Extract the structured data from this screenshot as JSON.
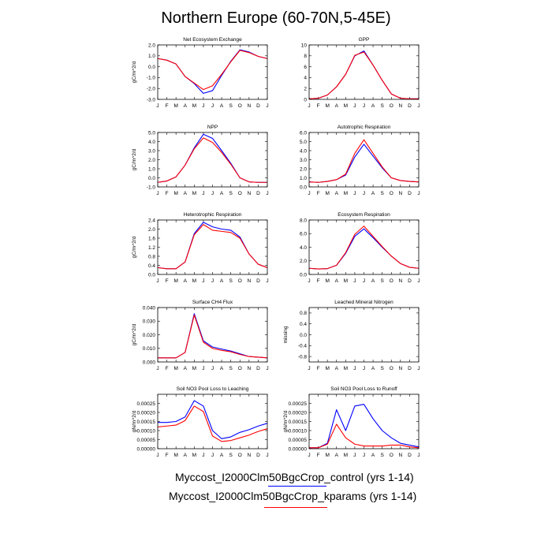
{
  "title": "Northern Europe (60-70N,5-45E)",
  "months": [
    "J",
    "F",
    "M",
    "A",
    "M",
    "J",
    "J",
    "A",
    "S",
    "O",
    "N",
    "D",
    "J"
  ],
  "colors": {
    "control": "#0000ff",
    "kparams": "#ff0000"
  },
  "legend": [
    {
      "label": "Myccost_I2000Clm50BgcCrop_control (yrs 1-14)",
      "color": "#0000ff"
    },
    {
      "label": "Myccost_I2000Clm50BgcCrop_kparams (yrs 1-14)",
      "color": "#ff0000"
    }
  ],
  "chart_data": [
    {
      "type": "line",
      "title": "Net Ecosystem Exchange",
      "ylabel": "gC/m^2/d",
      "ylim": [
        -3.0,
        2.0
      ],
      "yticks": [
        "2.0",
        "1.0",
        "0.0",
        "-1.0",
        "-2.0",
        "-3.0"
      ],
      "ytick_values": [
        2.0,
        1.0,
        0.0,
        -1.0,
        -2.0,
        -3.0
      ],
      "series": [
        {
          "values": [
            0.75,
            0.6,
            0.25,
            -0.9,
            -1.55,
            -2.45,
            -2.2,
            -0.8,
            0.5,
            1.55,
            1.35,
            0.95,
            0.75
          ]
        },
        {
          "values": [
            0.75,
            0.6,
            0.25,
            -0.9,
            -1.5,
            -2.1,
            -1.75,
            -0.7,
            0.45,
            1.5,
            1.3,
            0.95,
            0.75
          ]
        }
      ]
    },
    {
      "type": "line",
      "title": "GPP",
      "ylabel": "",
      "ylim": [
        0,
        10
      ],
      "yticks": [
        "10",
        "8",
        "6",
        "4",
        "2",
        "0"
      ],
      "ytick_values": [
        10,
        8,
        6,
        4,
        2,
        0
      ],
      "series": [
        {
          "values": [
            0.1,
            0.2,
            0.8,
            2.3,
            4.6,
            8.0,
            8.9,
            6.3,
            3.5,
            1.0,
            0.2,
            0.1,
            0.1
          ]
        },
        {
          "values": [
            0.1,
            0.2,
            0.8,
            2.3,
            4.6,
            8.1,
            8.7,
            6.3,
            3.5,
            1.0,
            0.2,
            0.1,
            0.1
          ]
        }
      ]
    },
    {
      "type": "line",
      "title": "NPP",
      "ylabel": "gC/m^2/d",
      "ylim": [
        -1.0,
        5.0
      ],
      "yticks": [
        "5.0",
        "4.0",
        "3.0",
        "2.0",
        "1.0",
        "0.0",
        "-1.0"
      ],
      "ytick_values": [
        5.0,
        4.0,
        3.0,
        2.0,
        1.0,
        0.0,
        -1.0
      ],
      "series": [
        {
          "values": [
            -0.5,
            -0.35,
            0.1,
            1.4,
            3.3,
            4.8,
            4.35,
            3.0,
            1.6,
            0.0,
            -0.45,
            -0.5,
            -0.5
          ]
        },
        {
          "values": [
            -0.5,
            -0.35,
            0.1,
            1.4,
            3.2,
            4.4,
            3.9,
            2.8,
            1.5,
            0.0,
            -0.45,
            -0.5,
            -0.5
          ]
        }
      ]
    },
    {
      "type": "line",
      "title": "Autotrophic Respiration",
      "ylabel": "",
      "ylim": [
        0,
        6.0
      ],
      "yticks": [
        "6.0",
        "5.0",
        "4.0",
        "3.0",
        "2.0",
        "1.0",
        "0.0"
      ],
      "ytick_values": [
        6.0,
        5.0,
        4.0,
        3.0,
        2.0,
        1.0,
        0.0
      ],
      "series": [
        {
          "values": [
            0.55,
            0.5,
            0.6,
            0.8,
            1.3,
            3.3,
            4.7,
            3.4,
            2.1,
            1.0,
            0.7,
            0.6,
            0.55
          ]
        },
        {
          "values": [
            0.55,
            0.5,
            0.6,
            0.8,
            1.4,
            3.7,
            5.2,
            3.7,
            2.2,
            1.0,
            0.7,
            0.6,
            0.55
          ]
        }
      ]
    },
    {
      "type": "line",
      "title": "Heterotrophic Respiration",
      "ylabel": "gC/m^2/d",
      "ylim": [
        0,
        2.4
      ],
      "yticks": [
        "2.4",
        "2.0",
        "1.6",
        "1.2",
        "0.8",
        "0.4",
        "0.0"
      ],
      "ytick_values": [
        2.4,
        2.0,
        1.6,
        1.2,
        0.8,
        0.4,
        0.0
      ],
      "series": [
        {
          "values": [
            0.3,
            0.25,
            0.25,
            0.55,
            1.8,
            2.3,
            2.1,
            2.0,
            1.95,
            1.65,
            0.9,
            0.45,
            0.3
          ]
        },
        {
          "values": [
            0.3,
            0.25,
            0.25,
            0.55,
            1.75,
            2.2,
            1.95,
            1.9,
            1.85,
            1.6,
            0.9,
            0.45,
            0.3
          ]
        }
      ]
    },
    {
      "type": "line",
      "title": "Ecosystem Respiration",
      "ylabel": "",
      "ylim": [
        0,
        8.0
      ],
      "yticks": [
        "8.0",
        "6.0",
        "4.0",
        "2.0",
        "0.0"
      ],
      "ytick_values": [
        8.0,
        6.0,
        4.0,
        2.0,
        0.0
      ],
      "series": [
        {
          "values": [
            0.9,
            0.8,
            0.85,
            1.35,
            3.1,
            5.6,
            6.7,
            5.4,
            4.0,
            2.7,
            1.6,
            1.05,
            0.9
          ]
        },
        {
          "values": [
            0.9,
            0.8,
            0.85,
            1.35,
            3.2,
            5.9,
            7.1,
            5.6,
            4.1,
            2.7,
            1.6,
            1.05,
            0.9
          ]
        }
      ]
    },
    {
      "type": "line",
      "title": "Surface CH4 Flux",
      "ylabel": "gC/m^2/d",
      "ylim": [
        0,
        0.04
      ],
      "yticks": [
        "0.040",
        "0.030",
        "0.020",
        "0.010",
        "0.000"
      ],
      "ytick_values": [
        0.04,
        0.03,
        0.02,
        0.01,
        0.0
      ],
      "series": [
        {
          "values": [
            0.003,
            0.003,
            0.003,
            0.007,
            0.0355,
            0.0155,
            0.011,
            0.0095,
            0.008,
            0.006,
            0.004,
            0.0035,
            0.003
          ]
        },
        {
          "values": [
            0.003,
            0.003,
            0.003,
            0.007,
            0.0345,
            0.0145,
            0.01,
            0.0085,
            0.0075,
            0.0055,
            0.004,
            0.0035,
            0.003
          ]
        }
      ]
    },
    {
      "type": "line",
      "title": "Leached Mineral Nitrogen",
      "ylabel": "missing",
      "ylim": [
        -1.0,
        1.0
      ],
      "yticks": [
        "0.8",
        "0.4",
        "0.0",
        "-0.4",
        "-0.8"
      ],
      "ytick_values": [
        0.8,
        0.4,
        0.0,
        -0.4,
        -0.8
      ],
      "series": []
    },
    {
      "type": "line",
      "title": "Soil NO3 Pool Loss to Leaching",
      "ylabel": "gN/m^2/d",
      "ylim": [
        0,
        0.0003
      ],
      "yticks": [
        "0.00025",
        "0.00020",
        "0.00015",
        "0.00010",
        "0.00005",
        "0.00000"
      ],
      "ytick_values": [
        0.00025,
        0.0002,
        0.00015,
        0.0001,
        5e-05,
        0.0
      ],
      "series": [
        {
          "values": [
            0.000145,
            0.000145,
            0.00015,
            0.000175,
            0.000265,
            0.000235,
            0.0001,
            5.5e-05,
            6.5e-05,
            9e-05,
            0.000105,
            0.000125,
            0.00014
          ]
        },
        {
          "values": [
            0.00012,
            0.000125,
            0.00013,
            0.000155,
            0.000235,
            0.000205,
            7e-05,
            4e-05,
            4.5e-05,
            6e-05,
            7.5e-05,
            9.5e-05,
            0.00011
          ]
        }
      ]
    },
    {
      "type": "line",
      "title": "Soil NO3 Pool Loss to Runoff",
      "ylabel": "gN/m^2/d",
      "ylim": [
        0,
        0.0003
      ],
      "yticks": [
        "0.00025",
        "0.00020",
        "0.00015",
        "0.00010",
        "0.00005",
        "0.00000"
      ],
      "ytick_values": [
        0.00025,
        0.0002,
        0.00015,
        0.0001,
        5e-05,
        0.0
      ],
      "series": [
        {
          "values": [
            5e-06,
            5e-06,
            3e-05,
            0.000215,
            0.0001,
            0.000235,
            0.000245,
            0.000165,
            0.0001,
            6e-05,
            3e-05,
            2e-05,
            1e-05
          ]
        },
        {
          "values": [
            5e-06,
            5e-06,
            2.5e-05,
            0.000135,
            6e-05,
            2.5e-05,
            1.5e-05,
            1.5e-05,
            1.5e-05,
            2e-05,
            2e-05,
            1e-05,
            5e-06
          ]
        }
      ]
    }
  ]
}
